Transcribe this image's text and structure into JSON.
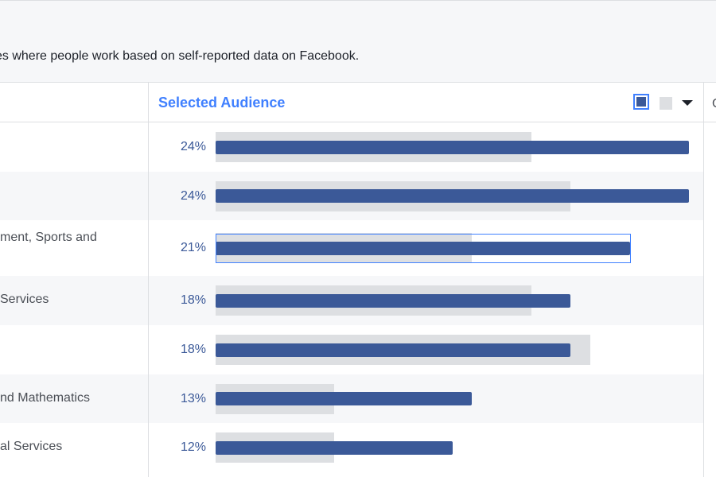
{
  "description": "es where people work based on self-reported data on Facebook.",
  "header": {
    "title": "Selected Audience",
    "clipped_next_column": "C",
    "legend_selected_color": "#3b5998",
    "legend_compare_color": "#dddfe2",
    "dropdown_icon": "chevron-down-icon"
  },
  "rows": [
    {
      "label": "",
      "pct": "24%",
      "selected": 0.24,
      "compare": 0.16
    },
    {
      "label": "",
      "pct": "24%",
      "selected": 0.24,
      "compare": 0.18
    },
    {
      "label": "ment, Sports and",
      "pct": "21%",
      "selected": 0.21,
      "compare": 0.13,
      "highlighted": true
    },
    {
      "label": "Services",
      "pct": "18%",
      "selected": 0.18,
      "compare": 0.16
    },
    {
      "label": "",
      "pct": "18%",
      "selected": 0.18,
      "compare": 0.19
    },
    {
      "label": "nd Mathematics",
      "pct": "13%",
      "selected": 0.13,
      "compare": 0.06
    },
    {
      "label": "al Services",
      "pct": "12%",
      "selected": 0.12,
      "compare": 0.06
    }
  ],
  "colors": {
    "selected_bar": "#3b5998",
    "compare_bar": "#dddfe2",
    "accent": "#4080ff"
  }
}
